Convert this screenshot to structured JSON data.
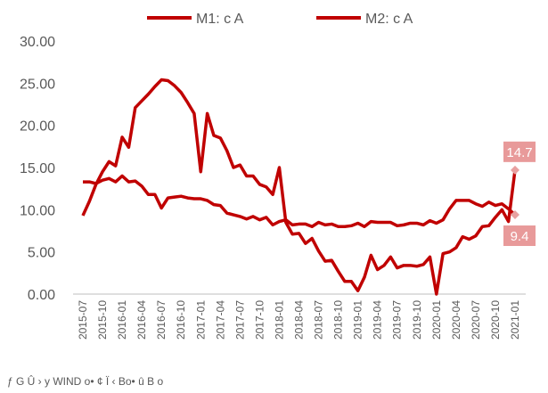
{
  "chart_data": {
    "type": "line",
    "legend": "top",
    "source": "ƒ G Û › y WIND o• ¢ Ï ‹ Bo• û B o",
    "categories": [
      "2015-07",
      null,
      null,
      "2015-10",
      null,
      null,
      "2016-01",
      null,
      null,
      "2016-04",
      null,
      null,
      "2016-07",
      null,
      null,
      "2016-10",
      null,
      null,
      "2017-01",
      null,
      null,
      "2017-04",
      null,
      null,
      "2017-07",
      null,
      null,
      "2017-10",
      null,
      null,
      "2018-01",
      null,
      null,
      "2018-04",
      null,
      null,
      "2018-07",
      null,
      null,
      "2018-10",
      null,
      null,
      "2019-01",
      null,
      null,
      "2019-04",
      null,
      null,
      "2019-07",
      null,
      null,
      "2019-10",
      null,
      null,
      "2020-01",
      null,
      null,
      "2020-04",
      null,
      null,
      "2020-07",
      null,
      null,
      "2020-10",
      null,
      null,
      "2021-01"
    ],
    "series": [
      {
        "name": "M1: c A",
        "color": "#c00000",
        "values": [
          9.3,
          11.0,
          13.0,
          14.5,
          15.7,
          15.2,
          18.6,
          17.4,
          22.1,
          22.9,
          23.7,
          24.6,
          25.4,
          25.3,
          24.7,
          23.9,
          22.7,
          21.4,
          14.5,
          21.4,
          18.8,
          18.5,
          17.0,
          15.0,
          15.3,
          14.0,
          14.0,
          13.0,
          12.7,
          11.8,
          15.0,
          8.5,
          7.1,
          7.2,
          6.0,
          6.6,
          5.1,
          3.9,
          4.0,
          2.7,
          1.5,
          1.5,
          0.4,
          2.0,
          4.6,
          2.9,
          3.4,
          4.4,
          3.1,
          3.4,
          3.4,
          3.3,
          3.5,
          4.4,
          0.0,
          4.8,
          5.0,
          5.5,
          6.8,
          6.5,
          6.9,
          8.0,
          8.1,
          9.1,
          10.0,
          8.6,
          14.7
        ]
      },
      {
        "name": "M2: c A",
        "color": "#c00000",
        "values": [
          13.3,
          13.3,
          13.1,
          13.5,
          13.7,
          13.3,
          14.0,
          13.3,
          13.4,
          12.8,
          11.8,
          11.8,
          10.2,
          11.4,
          11.5,
          11.6,
          11.4,
          11.3,
          11.3,
          11.1,
          10.6,
          10.5,
          9.6,
          9.4,
          9.2,
          8.9,
          9.2,
          8.8,
          9.1,
          8.2,
          8.6,
          8.8,
          8.2,
          8.3,
          8.3,
          8.0,
          8.5,
          8.2,
          8.3,
          8.0,
          8.0,
          8.1,
          8.4,
          8.0,
          8.6,
          8.5,
          8.5,
          8.5,
          8.1,
          8.2,
          8.4,
          8.4,
          8.2,
          8.7,
          8.4,
          8.8,
          10.1,
          11.1,
          11.1,
          11.1,
          10.7,
          10.4,
          10.9,
          10.5,
          10.7,
          10.1,
          9.4
        ]
      }
    ],
    "ylim": [
      0,
      30
    ],
    "yticks": [
      {
        "value": 0,
        "label": "0.00"
      },
      {
        "value": 5,
        "label": "5.00"
      },
      {
        "value": 10,
        "label": "10.00"
      },
      {
        "value": 15,
        "label": "15.00"
      },
      {
        "value": 20,
        "label": "20.00"
      },
      {
        "value": 25,
        "label": "25.00"
      },
      {
        "value": 30,
        "label": "30.00"
      }
    ],
    "grid": false
  }
}
